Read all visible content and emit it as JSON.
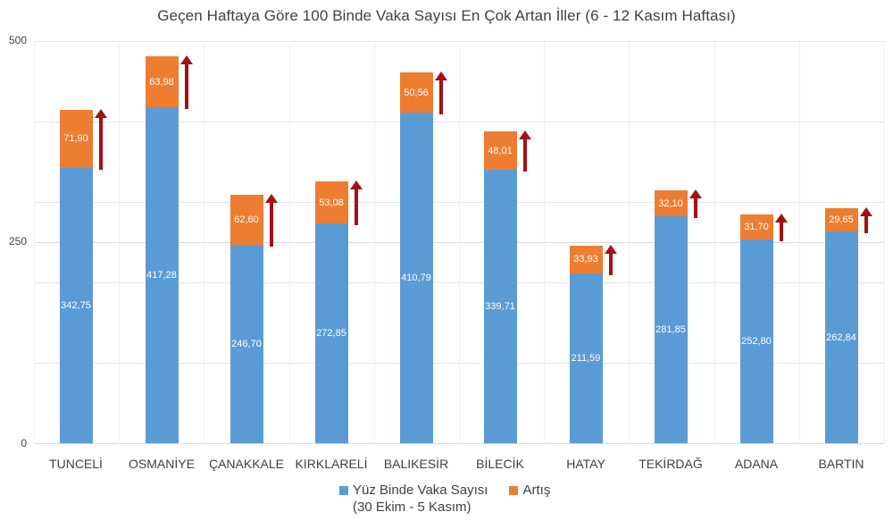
{
  "chart_data": {
    "type": "bar",
    "stacked": true,
    "title": "Geçen Haftaya Göre 100 Binde Vaka Sayısı En Çok Artan İller (6 - 12 Kasım Haftası)",
    "xlabel": "",
    "ylabel": "",
    "ylim": [
      0,
      500
    ],
    "yticks": [
      "0",
      "250",
      "500"
    ],
    "grid": true,
    "legend_position": "bottom",
    "categories": [
      "TUNCELİ",
      "OSMANİYE",
      "ÇANAKKALE",
      "KIRKLARELİ",
      "BALIKESİR",
      "BİLECİK",
      "HATAY",
      "TEKİRDAĞ",
      "ADANA",
      "BARTIN"
    ],
    "series": [
      {
        "name": "Yüz Binde Vaka Sayısı (30 Ekim - 5 Kasım)",
        "color": "#5b9bd5",
        "values": [
          342.75,
          417.28,
          246.7,
          272.85,
          410.79,
          339.71,
          211.59,
          281.85,
          252.8,
          262.84
        ],
        "labels": [
          "342,75",
          "417,28",
          "246,70",
          "272,85",
          "410,79",
          "339,71",
          "211,59",
          "281,85",
          "252,80",
          "262,84"
        ]
      },
      {
        "name": "Artış",
        "color": "#ed7d31",
        "values": [
          71.9,
          63.98,
          62.6,
          53.08,
          50.56,
          48.01,
          33.93,
          32.1,
          31.7,
          29.65
        ],
        "labels": [
          "71,90",
          "63,98",
          "62,60",
          "53,08",
          "50,56",
          "48,01",
          "33,93",
          "32,10",
          "31,70",
          "29,65"
        ]
      }
    ],
    "annotations": "Dark red upward arrow beside each bar spanning the increase segment"
  },
  "legend": {
    "base_label": "Yüz Binde Vaka Sayısı",
    "base_sub": "(30 Ekim - 5 Kasım)",
    "inc_label": "Artış"
  },
  "colors": {
    "base": "#5b9bd5",
    "increase": "#ed7d31",
    "arrow": "#a50f15"
  }
}
